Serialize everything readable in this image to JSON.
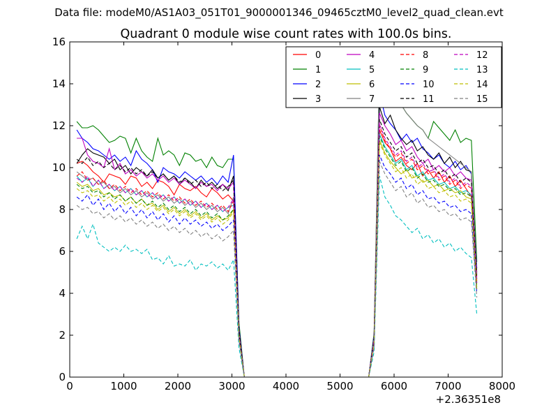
{
  "chart_data": {
    "type": "line",
    "suptitle": "Data file: modeM0/AS1A03_051T01_9000001346_09465cztM0_level2_quad_clean.evt",
    "title": "Quadrant 0 module wise count rates with 100.0s bins.",
    "xlabel": "",
    "ylabel": "",
    "x_offset_label": "+2.36351e8",
    "xlim": [
      0,
      8000
    ],
    "ylim": [
      0,
      16
    ],
    "xticks": [
      0,
      1000,
      2000,
      3000,
      4000,
      5000,
      6000,
      7000,
      8000
    ],
    "yticks": [
      0,
      2,
      4,
      6,
      8,
      10,
      12,
      14,
      16
    ],
    "grid": false,
    "legend_position": "top-right",
    "legend_columns": 4,
    "segment1_x_start": 130,
    "segment2_x_start": 5530,
    "bin_width": 100,
    "series": [
      {
        "name": "0",
        "color": "#ff0000",
        "style": "solid",
        "seg1": [
          10.2,
          10.3,
          10.1,
          9.8,
          9.6,
          9.3,
          9.7,
          9.6,
          9.5,
          9.2,
          9.6,
          9.5,
          9.1,
          9.3,
          9.0,
          9.4,
          9.3,
          9.1,
          8.7,
          9.2,
          9.0,
          8.9,
          9.1,
          8.8,
          8.6,
          9.0,
          8.8,
          8.5,
          8.7,
          8.4,
          2.1,
          0.0
        ],
        "seg2": [
          0.0,
          1.8,
          11.8,
          11.2,
          10.9,
          10.3,
          10.5,
          10.1,
          9.9,
          10.2,
          9.6,
          9.9,
          9.5,
          9.8,
          9.3,
          9.6,
          9.1,
          9.4,
          9.0,
          8.6,
          4.5
        ]
      },
      {
        "name": "1",
        "color": "#008000",
        "style": "solid",
        "seg1": [
          12.2,
          11.9,
          11.9,
          12.0,
          11.8,
          11.5,
          11.2,
          11.3,
          11.5,
          11.4,
          10.7,
          11.4,
          10.8,
          10.5,
          10.3,
          11.4,
          10.6,
          10.8,
          10.6,
          10.1,
          10.7,
          10.6,
          10.3,
          10.4,
          10.0,
          10.5,
          10.1,
          10.0,
          10.4,
          10.4,
          2.6,
          0.0
        ],
        "seg2": [
          0.0,
          2.1,
          14.9,
          13.8,
          13.7,
          13.1,
          13.0,
          12.6,
          12.3,
          12.0,
          11.8,
          11.4,
          12.2,
          11.9,
          11.6,
          11.3,
          11.8,
          11.2,
          11.4,
          11.3,
          5.5
        ]
      },
      {
        "name": "2",
        "color": "#0000ff",
        "style": "solid",
        "seg1": [
          11.8,
          11.4,
          11.2,
          10.9,
          10.8,
          10.6,
          10.4,
          10.6,
          10.3,
          10.5,
          10.1,
          10.8,
          10.4,
          10.2,
          9.9,
          9.3,
          10.0,
          9.8,
          9.7,
          9.5,
          9.8,
          9.6,
          9.4,
          9.6,
          9.3,
          9.5,
          9.2,
          9.6,
          9.3,
          10.6,
          2.4,
          0.0
        ],
        "seg2": [
          0.0,
          2.0,
          13.6,
          12.5,
          12.1,
          11.8,
          11.3,
          11.6,
          11.2,
          11.4,
          10.9,
          10.7,
          10.4,
          10.6,
          10.2,
          10.0,
          10.3,
          9.9,
          10.1,
          9.7,
          5.2
        ]
      },
      {
        "name": "3",
        "color": "#000000",
        "style": "solid",
        "seg1": [
          10.2,
          10.6,
          10.9,
          10.7,
          10.6,
          10.5,
          10.2,
          10.4,
          9.9,
          10.1,
          9.7,
          10.0,
          9.8,
          9.6,
          9.9,
          9.5,
          9.7,
          9.4,
          9.6,
          9.2,
          9.5,
          9.3,
          9.0,
          9.4,
          9.1,
          9.3,
          9.0,
          9.2,
          8.9,
          9.6,
          2.3,
          0.0
        ],
        "seg2": [
          0.0,
          1.9,
          12.9,
          12.1,
          12.5,
          11.8,
          11.4,
          11.1,
          11.3,
          10.8,
          11.0,
          10.6,
          10.4,
          10.7,
          10.2,
          10.5,
          10.0,
          10.3,
          9.9,
          9.8,
          5.0
        ]
      },
      {
        "name": "4",
        "color": "#bf00bf",
        "style": "solid",
        "seg1": [
          11.4,
          11.4,
          10.6,
          10.3,
          10.2,
          10.0,
          10.9,
          9.9,
          10.2,
          9.7,
          9.9,
          9.6,
          9.8,
          9.5,
          9.7,
          9.4,
          9.6,
          9.3,
          9.5,
          9.2,
          9.4,
          9.2,
          9.0,
          9.3,
          9.1,
          9.2,
          8.9,
          9.2,
          9.0,
          9.3,
          2.2,
          0.0
        ],
        "seg2": [
          0.0,
          1.8,
          12.6,
          12.0,
          11.6,
          11.1,
          11.3,
          10.8,
          11.0,
          10.5,
          10.2,
          10.4,
          9.9,
          10.1,
          9.8,
          10.0,
          9.6,
          9.8,
          9.5,
          9.4,
          4.8
        ]
      },
      {
        "name": "5",
        "color": "#00bfbf",
        "style": "solid",
        "seg1": [
          9.6,
          9.3,
          9.5,
          9.1,
          9.4,
          9.0,
          9.2,
          8.9,
          9.1,
          8.8,
          9.0,
          8.7,
          8.9,
          8.6,
          8.8,
          8.5,
          8.7,
          8.4,
          8.6,
          8.3,
          8.5,
          8.2,
          8.4,
          8.1,
          8.3,
          8.0,
          8.2,
          7.9,
          8.1,
          8.2,
          2.0,
          0.0
        ],
        "seg2": [
          0.0,
          1.7,
          11.6,
          11.0,
          10.6,
          10.2,
          10.4,
          9.9,
          10.1,
          9.6,
          9.8,
          9.4,
          9.5,
          9.2,
          9.3,
          9.0,
          9.1,
          8.8,
          8.9,
          8.7,
          4.3
        ]
      },
      {
        "name": "6",
        "color": "#bfbf00",
        "style": "solid",
        "seg1": [
          9.3,
          9.1,
          9.2,
          8.9,
          9.0,
          8.7,
          8.8,
          8.6,
          8.7,
          8.4,
          8.6,
          8.3,
          8.5,
          8.2,
          8.3,
          8.0,
          8.2,
          7.9,
          8.1,
          7.8,
          8.0,
          7.7,
          7.9,
          7.6,
          7.8,
          7.5,
          7.7,
          7.5,
          7.6,
          8.0,
          1.9,
          0.0
        ],
        "seg2": [
          0.0,
          1.6,
          11.3,
          10.7,
          10.3,
          10.0,
          9.7,
          9.9,
          9.5,
          9.6,
          9.3,
          9.4,
          9.1,
          9.2,
          8.9,
          9.0,
          8.8,
          8.9,
          8.6,
          8.5,
          4.2
        ]
      },
      {
        "name": "7",
        "color": "#808080",
        "style": "solid",
        "seg1": [
          9.8,
          9.6,
          9.4,
          9.5,
          9.2,
          9.3,
          9.0,
          9.1,
          8.8,
          9.0,
          8.7,
          8.9,
          8.6,
          8.8,
          8.5,
          8.7,
          8.4,
          8.6,
          8.3,
          8.5,
          8.2,
          8.4,
          8.1,
          8.3,
          8.0,
          8.2,
          7.9,
          8.1,
          7.8,
          8.6,
          2.1,
          0.0
        ],
        "seg2": [
          0.0,
          1.9,
          14.9,
          13.8,
          13.7,
          13.1,
          13.0,
          12.6,
          12.3,
          12.0,
          11.8,
          11.4,
          11.2,
          11.0,
          10.8,
          10.6,
          10.4,
          10.2,
          10.0,
          9.8,
          4.9
        ]
      },
      {
        "name": "8",
        "color": "#ff0000",
        "style": "dashed",
        "seg1": [
          9.6,
          9.8,
          9.4,
          9.5,
          9.2,
          9.4,
          9.0,
          9.2,
          8.9,
          9.1,
          8.8,
          9.0,
          8.7,
          8.9,
          8.6,
          8.8,
          8.5,
          8.7,
          8.4,
          8.6,
          8.3,
          8.5,
          8.2,
          8.4,
          8.1,
          8.3,
          8.0,
          8.2,
          7.9,
          8.4,
          2.0,
          0.0
        ],
        "seg2": [
          0.0,
          1.8,
          12.0,
          11.3,
          10.9,
          10.5,
          10.7,
          10.2,
          10.4,
          9.9,
          10.1,
          9.7,
          9.8,
          9.4,
          9.6,
          9.2,
          9.4,
          9.0,
          9.2,
          9.0,
          4.6
        ]
      },
      {
        "name": "9",
        "color": "#008000",
        "style": "dashed",
        "seg1": [
          9.2,
          9.0,
          9.1,
          8.8,
          8.9,
          8.6,
          8.8,
          8.5,
          8.7,
          8.4,
          8.6,
          8.3,
          8.5,
          8.2,
          8.4,
          8.1,
          8.3,
          8.0,
          8.2,
          7.9,
          8.1,
          7.8,
          8.0,
          7.7,
          7.9,
          7.6,
          7.8,
          7.5,
          7.7,
          8.0,
          1.9,
          0.0
        ],
        "seg2": [
          0.0,
          1.7,
          11.5,
          10.9,
          10.5,
          10.1,
          10.3,
          9.8,
          10.0,
          9.5,
          9.7,
          9.3,
          9.4,
          9.1,
          9.2,
          8.9,
          9.0,
          8.7,
          8.8,
          8.6,
          4.4
        ]
      },
      {
        "name": "10",
        "color": "#0000ff",
        "style": "dashed",
        "seg1": [
          8.6,
          8.4,
          8.7,
          8.2,
          8.5,
          8.0,
          8.3,
          7.9,
          8.2,
          7.8,
          8.1,
          7.7,
          8.0,
          7.6,
          7.9,
          7.5,
          7.8,
          7.4,
          7.7,
          7.3,
          7.6,
          7.3,
          7.5,
          7.2,
          7.4,
          7.1,
          7.3,
          7.0,
          7.2,
          7.5,
          1.8,
          0.0
        ],
        "seg2": [
          0.0,
          1.5,
          10.6,
          10.0,
          9.7,
          9.3,
          9.5,
          9.0,
          9.2,
          8.7,
          8.9,
          8.5,
          8.6,
          8.3,
          8.4,
          8.1,
          8.2,
          7.9,
          8.0,
          7.8,
          4.0
        ]
      },
      {
        "name": "11",
        "color": "#000000",
        "style": "dashed",
        "seg1": [
          10.4,
          10.2,
          10.5,
          10.1,
          10.3,
          10.0,
          10.2,
          9.9,
          10.1,
          9.8,
          10.0,
          9.7,
          9.9,
          9.6,
          9.8,
          9.5,
          9.7,
          9.4,
          9.6,
          9.3,
          9.5,
          9.2,
          9.4,
          9.1,
          9.3,
          9.0,
          9.2,
          8.9,
          9.1,
          9.4,
          2.2,
          0.0
        ],
        "seg2": [
          0.0,
          1.9,
          12.3,
          11.6,
          11.2,
          10.8,
          11.0,
          10.5,
          10.7,
          10.2,
          10.4,
          10.0,
          10.1,
          9.7,
          9.9,
          9.5,
          9.7,
          9.3,
          9.5,
          9.3,
          4.7
        ]
      },
      {
        "name": "12",
        "color": "#bf00bf",
        "style": "dashed",
        "seg1": [
          9.5,
          9.3,
          9.6,
          9.1,
          9.4,
          9.0,
          9.2,
          8.9,
          9.1,
          8.8,
          9.0,
          8.7,
          8.9,
          8.6,
          8.8,
          8.5,
          8.7,
          8.4,
          8.6,
          8.3,
          8.5,
          8.2,
          8.4,
          8.1,
          8.3,
          8.0,
          8.2,
          7.9,
          8.1,
          8.5,
          2.0,
          0.0
        ],
        "seg2": [
          0.0,
          1.8,
          12.1,
          11.4,
          11.0,
          10.6,
          10.8,
          10.3,
          10.5,
          10.0,
          10.2,
          9.8,
          9.9,
          9.5,
          9.7,
          9.3,
          9.5,
          9.1,
          9.3,
          9.1,
          4.5
        ]
      },
      {
        "name": "13",
        "color": "#00bfbf",
        "style": "dashed",
        "seg1": [
          6.6,
          7.2,
          6.6,
          7.3,
          6.4,
          6.2,
          6.0,
          6.2,
          6.0,
          6.3,
          6.0,
          6.1,
          5.9,
          6.1,
          5.6,
          5.7,
          5.4,
          5.8,
          5.3,
          5.4,
          5.3,
          5.6,
          5.1,
          5.4,
          5.3,
          5.5,
          5.2,
          5.4,
          5.1,
          5.6,
          1.4,
          0.0
        ],
        "seg2": [
          0.0,
          1.2,
          9.6,
          8.6,
          8.2,
          7.7,
          7.5,
          7.2,
          6.9,
          7.1,
          6.6,
          6.8,
          6.4,
          6.6,
          6.2,
          6.4,
          6.0,
          6.2,
          5.9,
          5.7,
          3.0
        ]
      },
      {
        "name": "14",
        "color": "#bfbf00",
        "style": "dashed",
        "seg1": [
          9.0,
          8.8,
          8.9,
          8.6,
          8.7,
          8.4,
          8.6,
          8.3,
          8.5,
          8.2,
          8.4,
          8.1,
          8.3,
          8.0,
          8.2,
          7.9,
          8.1,
          7.8,
          8.0,
          7.7,
          7.9,
          7.6,
          7.8,
          7.5,
          7.7,
          7.4,
          7.6,
          7.3,
          7.5,
          7.9,
          1.9,
          0.0
        ],
        "seg2": [
          0.0,
          1.6,
          11.2,
          10.6,
          10.2,
          9.8,
          10.0,
          9.5,
          9.7,
          9.2,
          9.4,
          9.0,
          9.1,
          8.8,
          8.9,
          8.6,
          8.7,
          8.4,
          8.5,
          8.3,
          4.2
        ]
      },
      {
        "name": "15",
        "color": "#808080",
        "style": "dashed",
        "seg1": [
          8.2,
          8.0,
          8.1,
          7.8,
          7.9,
          7.6,
          7.8,
          7.5,
          7.7,
          7.4,
          7.6,
          7.3,
          7.5,
          7.2,
          7.4,
          7.1,
          7.3,
          7.0,
          7.2,
          6.9,
          7.1,
          6.8,
          7.0,
          6.7,
          6.9,
          6.6,
          6.8,
          6.5,
          6.7,
          7.0,
          1.7,
          0.0
        ],
        "seg2": [
          0.0,
          1.4,
          10.3,
          9.7,
          9.3,
          8.9,
          9.1,
          8.6,
          8.8,
          8.3,
          8.5,
          8.1,
          8.2,
          7.9,
          8.0,
          7.7,
          7.8,
          7.5,
          7.6,
          7.4,
          3.8
        ]
      }
    ]
  }
}
